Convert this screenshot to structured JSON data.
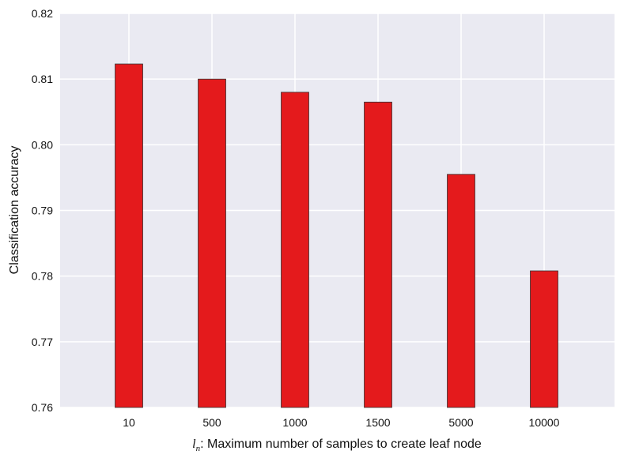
{
  "chart_data": {
    "type": "bar",
    "categories": [
      "10",
      "500",
      "1000",
      "1500",
      "5000",
      "10000"
    ],
    "values": [
      0.8123,
      0.81,
      0.808,
      0.8065,
      0.7955,
      0.7808
    ],
    "ylim": [
      0.76,
      0.82
    ],
    "yticks": [
      "0.76",
      "0.77",
      "0.78",
      "0.79",
      "0.80",
      "0.81",
      "0.82"
    ],
    "xlabel_symbol": "l",
    "xlabel_subscript": "n",
    "xlabel_text": ": Maximum number of samples to create leaf node",
    "ylabel": "Classification accuracy",
    "grid": true,
    "colors": {
      "bar": "#e41a1c",
      "bar_edge": "#333333",
      "plot_bg": "#eaeaf2",
      "grid": "#ffffff"
    }
  }
}
